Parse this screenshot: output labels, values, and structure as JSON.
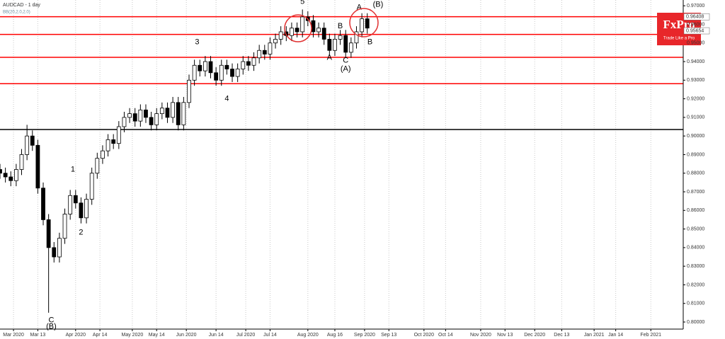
{
  "chart_data": {
    "type": "candlestick",
    "title": "AUDCAD - 1 day",
    "subtitle": "BB(20,2.0,2.0)",
    "brand": {
      "name": "FxPro",
      "tagline": "Trade Like a Pro"
    },
    "x": [
      0,
      2,
      4,
      6,
      8,
      10,
      12,
      14,
      16,
      18,
      20,
      22,
      24,
      26,
      28,
      30,
      32,
      34,
      36,
      38,
      40,
      42,
      44,
      46,
      48,
      50,
      52,
      54,
      56,
      58,
      60,
      62,
      64,
      66,
      68,
      70,
      72,
      74,
      76,
      78,
      80,
      82,
      84,
      86,
      88,
      90,
      92,
      94,
      96,
      98,
      100,
      102,
      104,
      106,
      108,
      110,
      112,
      114,
      116,
      118,
      120,
      122,
      124,
      126,
      128,
      130,
      132,
      134,
      136
    ],
    "open": [
      0.882,
      0.88,
      0.878,
      0.876,
      0.882,
      0.89,
      0.9,
      0.895,
      0.872,
      0.855,
      0.84,
      0.835,
      0.845,
      0.858,
      0.868,
      0.864,
      0.856,
      0.866,
      0.88,
      0.888,
      0.892,
      0.898,
      0.896,
      0.905,
      0.91,
      0.912,
      0.908,
      0.914,
      0.91,
      0.906,
      0.912,
      0.915,
      0.91,
      0.918,
      0.906,
      0.918,
      0.93,
      0.938,
      0.935,
      0.94,
      0.934,
      0.93,
      0.938,
      0.936,
      0.932,
      0.936,
      0.94,
      0.938,
      0.942,
      0.946,
      0.944,
      0.95,
      0.952,
      0.956,
      0.954,
      0.958,
      0.956,
      0.964,
      0.962,
      0.956,
      0.958,
      0.952,
      0.946,
      0.952,
      0.954,
      0.945,
      0.95,
      0.956,
      0.963
    ],
    "high": [
      0.885,
      0.883,
      0.881,
      0.885,
      0.893,
      0.906,
      0.903,
      0.898,
      0.875,
      0.858,
      0.843,
      0.848,
      0.861,
      0.871,
      0.871,
      0.867,
      0.869,
      0.883,
      0.891,
      0.895,
      0.901,
      0.901,
      0.908,
      0.913,
      0.915,
      0.915,
      0.917,
      0.917,
      0.913,
      0.915,
      0.918,
      0.918,
      0.921,
      0.921,
      0.921,
      0.933,
      0.941,
      0.941,
      0.943,
      0.943,
      0.937,
      0.941,
      0.941,
      0.939,
      0.939,
      0.943,
      0.943,
      0.945,
      0.949,
      0.949,
      0.953,
      0.955,
      0.959,
      0.959,
      0.961,
      0.961,
      0.968,
      0.967,
      0.965,
      0.961,
      0.961,
      0.955,
      0.955,
      0.957,
      0.957,
      0.953,
      0.959,
      0.966,
      0.966
    ],
    "low": [
      0.877,
      0.875,
      0.873,
      0.873,
      0.879,
      0.887,
      0.892,
      0.869,
      0.852,
      0.805,
      0.832,
      0.832,
      0.842,
      0.855,
      0.861,
      0.853,
      0.853,
      0.863,
      0.877,
      0.885,
      0.889,
      0.893,
      0.893,
      0.902,
      0.907,
      0.905,
      0.905,
      0.907,
      0.903,
      0.903,
      0.909,
      0.907,
      0.907,
      0.903,
      0.903,
      0.915,
      0.927,
      0.932,
      0.932,
      0.931,
      0.927,
      0.927,
      0.933,
      0.929,
      0.929,
      0.933,
      0.935,
      0.935,
      0.939,
      0.941,
      0.941,
      0.947,
      0.949,
      0.951,
      0.951,
      0.953,
      0.953,
      0.959,
      0.953,
      0.953,
      0.949,
      0.943,
      0.943,
      0.949,
      0.942,
      0.942,
      0.947,
      0.953,
      0.955
    ],
    "close": [
      0.88,
      0.878,
      0.876,
      0.882,
      0.89,
      0.9,
      0.895,
      0.872,
      0.855,
      0.84,
      0.835,
      0.845,
      0.858,
      0.868,
      0.864,
      0.856,
      0.866,
      0.88,
      0.888,
      0.892,
      0.898,
      0.896,
      0.905,
      0.91,
      0.912,
      0.908,
      0.914,
      0.91,
      0.906,
      0.912,
      0.915,
      0.91,
      0.918,
      0.906,
      0.918,
      0.93,
      0.938,
      0.935,
      0.94,
      0.934,
      0.93,
      0.938,
      0.936,
      0.932,
      0.936,
      0.94,
      0.938,
      0.942,
      0.946,
      0.944,
      0.95,
      0.952,
      0.956,
      0.954,
      0.958,
      0.956,
      0.964,
      0.962,
      0.956,
      0.958,
      0.952,
      0.946,
      0.952,
      0.954,
      0.945,
      0.95,
      0.956,
      0.963,
      0.958
    ],
    "xlim": [
      0,
      253
    ],
    "xticks": [
      {
        "value": 5,
        "label": "Mar 2020"
      },
      {
        "value": 14,
        "label": "Mar 13"
      },
      {
        "value": 28,
        "label": "Apr 2020"
      },
      {
        "value": 37,
        "label": "Apr 14"
      },
      {
        "value": 49,
        "label": "May 2020"
      },
      {
        "value": 58,
        "label": "May 14"
      },
      {
        "value": 69,
        "label": "Jun 2020"
      },
      {
        "value": 80,
        "label": "Jun 14"
      },
      {
        "value": 91,
        "label": "Jul 2020"
      },
      {
        "value": 100,
        "label": "Jul 14"
      },
      {
        "value": 114,
        "label": "Aug 2020"
      },
      {
        "value": 124,
        "label": "Aug 16"
      },
      {
        "value": 135,
        "label": "Sep 2020"
      },
      {
        "value": 144,
        "label": "Sep 13"
      },
      {
        "value": 157,
        "label": "Oct 2020"
      },
      {
        "value": 165,
        "label": "Oct 14"
      },
      {
        "value": 178,
        "label": "Nov 2020"
      },
      {
        "value": 187,
        "label": "Nov 13"
      },
      {
        "value": 198,
        "label": "Dec 2020"
      },
      {
        "value": 208,
        "label": "Dec 13"
      },
      {
        "value": 220,
        "label": "Jan 2021"
      },
      {
        "value": 228,
        "label": "Jan 14"
      },
      {
        "value": 241,
        "label": "Feb 2021"
      }
    ],
    "ylim": [
      0.7962,
      0.9731
    ],
    "yticks": [
      {
        "value": 0.97,
        "label": "0.97000"
      },
      {
        "value": 0.96,
        "label": "0.96000"
      },
      {
        "value": 0.95,
        "label": "0.95000"
      },
      {
        "value": 0.94,
        "label": "0.94000"
      },
      {
        "value": 0.93,
        "label": "0.93000"
      },
      {
        "value": 0.92,
        "label": "0.92000"
      },
      {
        "value": 0.91,
        "label": "0.91000"
      },
      {
        "value": 0.9,
        "label": "0.90000"
      },
      {
        "value": 0.89,
        "label": "0.89000"
      },
      {
        "value": 0.88,
        "label": "0.88000"
      },
      {
        "value": 0.87,
        "label": "0.87000"
      },
      {
        "value": 0.86,
        "label": "0.86000"
      },
      {
        "value": 0.85,
        "label": "0.85000"
      },
      {
        "value": 0.84,
        "label": "0.84000"
      },
      {
        "value": 0.83,
        "label": "0.83000"
      },
      {
        "value": 0.82,
        "label": "0.82000"
      },
      {
        "value": 0.81,
        "label": "0.81000"
      },
      {
        "value": 0.8,
        "label": "0.80000"
      }
    ],
    "price_labels": [
      {
        "value": 0.96408,
        "label": "0.96408"
      },
      {
        "value": 0.95654,
        "label": "0.95654"
      }
    ],
    "levels": [
      {
        "value": 0.9641,
        "color": "#ff0000"
      },
      {
        "value": 0.9546,
        "color": "#ff0000"
      },
      {
        "value": 0.9423,
        "color": "#ff0000"
      },
      {
        "value": 0.9281,
        "color": "#ff0000"
      },
      {
        "value": 0.9035,
        "color": "#000000"
      }
    ],
    "annotations": [
      {
        "text": "5",
        "x": 112,
        "y": 0.9722
      },
      {
        "text": "3",
        "x": 73,
        "y": 0.9505
      },
      {
        "text": "4",
        "x": 84,
        "y": 0.92
      },
      {
        "text": "1",
        "x": 27,
        "y": 0.882
      },
      {
        "text": "2",
        "x": 30,
        "y": 0.848
      },
      {
        "text": "C",
        "x": 19,
        "y": 0.801
      },
      {
        "text": "(B)",
        "x": 19,
        "y": 0.7975
      },
      {
        "text": "A",
        "x": 133,
        "y": 0.969
      },
      {
        "text": "(B)",
        "x": 140,
        "y": 0.9705
      },
      {
        "text": "B",
        "x": 137,
        "y": 0.9505
      },
      {
        "text": "B",
        "x": 126,
        "y": 0.959
      },
      {
        "text": "A",
        "x": 122,
        "y": 0.942
      },
      {
        "text": "C",
        "x": 128,
        "y": 0.9405
      },
      {
        "text": "(A)",
        "x": 128,
        "y": 0.936
      }
    ],
    "bull_color": "#ffffff",
    "bear_color": "#000000",
    "grid": true
  }
}
